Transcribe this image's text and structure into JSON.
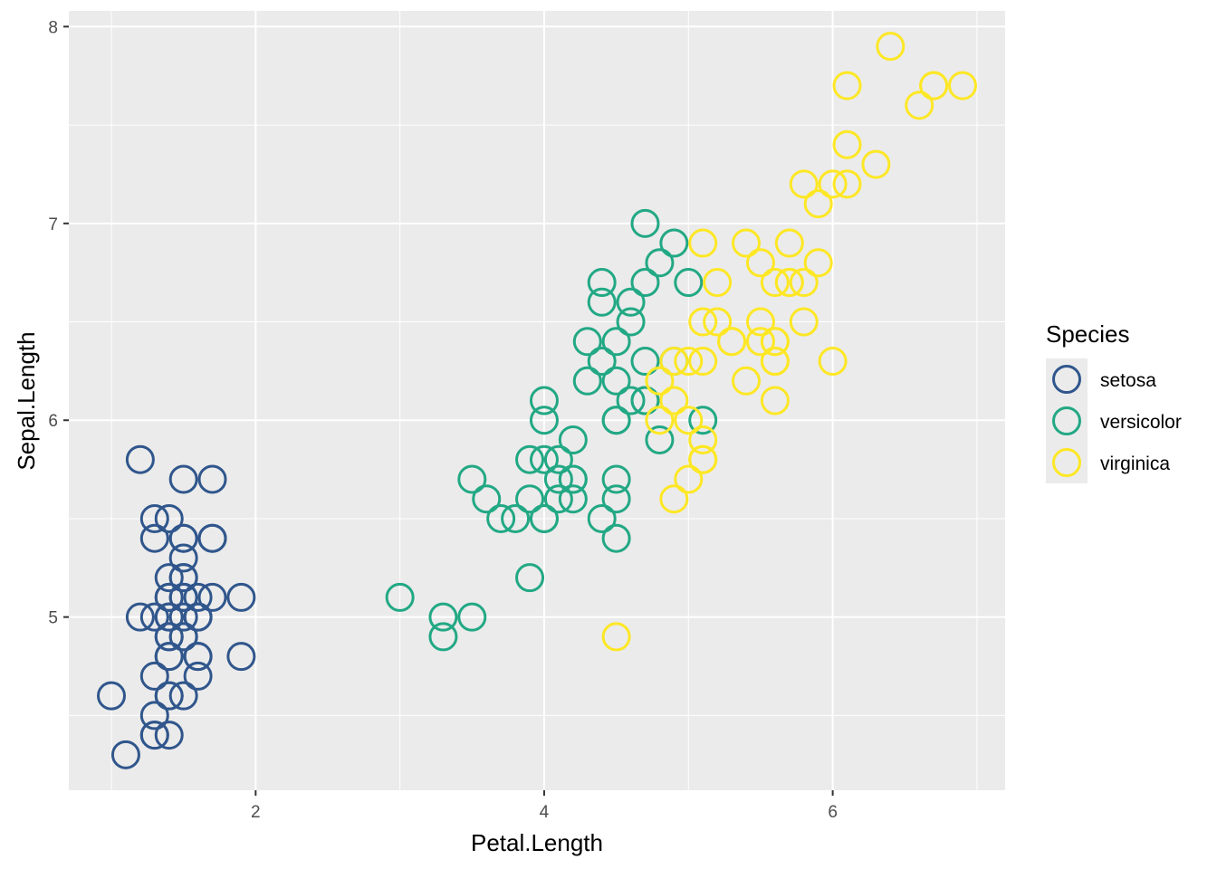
{
  "chart_data": {
    "type": "scatter",
    "title": "",
    "xlabel": "Petal.Length",
    "ylabel": "Sepal.Length",
    "xlim": [
      0.705,
      7.195
    ],
    "ylim": [
      4.12,
      8.08
    ],
    "x_ticks": [
      2,
      4,
      6
    ],
    "y_ticks": [
      5,
      6,
      7,
      8
    ],
    "x_tick_labels": [
      "2",
      "4",
      "6"
    ],
    "y_tick_labels": [
      "5",
      "6",
      "7",
      "8"
    ],
    "grid": true,
    "panel_background": "#EBEBEB",
    "grid_color": "#FFFFFF",
    "marker": "hollow-circle",
    "legend": {
      "title": "Species",
      "placement": "right"
    },
    "series": [
      {
        "name": "setosa",
        "color": "#30568C",
        "points": [
          [
            1.4,
            5.1
          ],
          [
            1.4,
            4.9
          ],
          [
            1.3,
            4.7
          ],
          [
            1.5,
            4.6
          ],
          [
            1.4,
            5.0
          ],
          [
            1.7,
            5.4
          ],
          [
            1.4,
            4.6
          ],
          [
            1.5,
            5.0
          ],
          [
            1.4,
            4.4
          ],
          [
            1.5,
            4.9
          ],
          [
            1.5,
            5.4
          ],
          [
            1.6,
            4.8
          ],
          [
            1.4,
            4.8
          ],
          [
            1.1,
            4.3
          ],
          [
            1.2,
            5.8
          ],
          [
            1.5,
            5.7
          ],
          [
            1.3,
            5.4
          ],
          [
            1.4,
            5.1
          ],
          [
            1.7,
            5.7
          ],
          [
            1.5,
            5.1
          ],
          [
            1.7,
            5.4
          ],
          [
            1.5,
            5.1
          ],
          [
            1.0,
            4.6
          ],
          [
            1.7,
            5.1
          ],
          [
            1.9,
            4.8
          ],
          [
            1.6,
            5.0
          ],
          [
            1.6,
            5.0
          ],
          [
            1.5,
            5.2
          ],
          [
            1.4,
            5.2
          ],
          [
            1.6,
            4.7
          ],
          [
            1.6,
            4.8
          ],
          [
            1.5,
            5.4
          ],
          [
            1.5,
            5.2
          ],
          [
            1.4,
            5.5
          ],
          [
            1.5,
            4.9
          ],
          [
            1.2,
            5.0
          ],
          [
            1.3,
            5.5
          ],
          [
            1.4,
            4.9
          ],
          [
            1.3,
            4.4
          ],
          [
            1.5,
            5.1
          ],
          [
            1.3,
            5.0
          ],
          [
            1.3,
            4.5
          ],
          [
            1.3,
            4.4
          ],
          [
            1.6,
            5.0
          ],
          [
            1.9,
            5.1
          ],
          [
            1.4,
            4.8
          ],
          [
            1.6,
            5.1
          ],
          [
            1.4,
            4.6
          ],
          [
            1.5,
            5.3
          ],
          [
            1.4,
            5.0
          ]
        ]
      },
      {
        "name": "versicolor",
        "color": "#22A884",
        "points": [
          [
            4.7,
            7.0
          ],
          [
            4.5,
            6.4
          ],
          [
            4.9,
            6.9
          ],
          [
            4.0,
            5.5
          ],
          [
            4.6,
            6.5
          ],
          [
            4.5,
            5.7
          ],
          [
            4.7,
            6.3
          ],
          [
            3.3,
            4.9
          ],
          [
            4.6,
            6.6
          ],
          [
            3.9,
            5.2
          ],
          [
            3.5,
            5.0
          ],
          [
            4.2,
            5.9
          ],
          [
            4.0,
            6.0
          ],
          [
            4.7,
            6.1
          ],
          [
            3.6,
            5.6
          ],
          [
            4.4,
            6.7
          ],
          [
            4.5,
            5.6
          ],
          [
            4.1,
            5.8
          ],
          [
            4.5,
            6.2
          ],
          [
            3.9,
            5.6
          ],
          [
            4.8,
            5.9
          ],
          [
            4.0,
            6.1
          ],
          [
            4.9,
            6.3
          ],
          [
            4.7,
            6.1
          ],
          [
            4.3,
            6.4
          ],
          [
            4.4,
            6.6
          ],
          [
            4.8,
            6.8
          ],
          [
            5.0,
            6.7
          ],
          [
            4.5,
            6.0
          ],
          [
            3.5,
            5.7
          ],
          [
            3.8,
            5.5
          ],
          [
            3.7,
            5.5
          ],
          [
            3.9,
            5.8
          ],
          [
            5.1,
            6.0
          ],
          [
            4.5,
            5.4
          ],
          [
            4.5,
            6.0
          ],
          [
            4.7,
            6.7
          ],
          [
            4.4,
            6.3
          ],
          [
            4.1,
            5.6
          ],
          [
            4.0,
            5.5
          ],
          [
            4.4,
            5.5
          ],
          [
            4.6,
            6.1
          ],
          [
            4.0,
            5.8
          ],
          [
            3.3,
            5.0
          ],
          [
            4.2,
            5.6
          ],
          [
            4.2,
            5.7
          ],
          [
            4.2,
            5.7
          ],
          [
            4.3,
            6.2
          ],
          [
            3.0,
            5.1
          ],
          [
            4.1,
            5.7
          ]
        ]
      },
      {
        "name": "virginica",
        "color": "#FDE725",
        "points": [
          [
            6.0,
            6.3
          ],
          [
            5.1,
            5.8
          ],
          [
            5.9,
            7.1
          ],
          [
            5.6,
            6.3
          ],
          [
            5.8,
            6.5
          ],
          [
            6.6,
            7.6
          ],
          [
            4.5,
            4.9
          ],
          [
            6.3,
            7.3
          ],
          [
            5.8,
            6.7
          ],
          [
            6.1,
            7.2
          ],
          [
            5.1,
            6.5
          ],
          [
            5.3,
            6.4
          ],
          [
            5.5,
            6.8
          ],
          [
            5.0,
            5.7
          ],
          [
            5.1,
            5.8
          ],
          [
            5.3,
            6.4
          ],
          [
            5.5,
            6.5
          ],
          [
            6.7,
            7.7
          ],
          [
            6.9,
            7.7
          ],
          [
            5.0,
            6.0
          ],
          [
            5.7,
            6.9
          ],
          [
            4.9,
            5.6
          ],
          [
            6.7,
            7.7
          ],
          [
            4.9,
            6.3
          ],
          [
            5.7,
            6.7
          ],
          [
            6.0,
            7.2
          ],
          [
            4.8,
            6.2
          ],
          [
            4.9,
            6.1
          ],
          [
            5.6,
            6.4
          ],
          [
            5.8,
            7.2
          ],
          [
            6.1,
            7.4
          ],
          [
            6.4,
            7.9
          ],
          [
            5.6,
            6.4
          ],
          [
            5.1,
            6.3
          ],
          [
            5.6,
            6.1
          ],
          [
            6.1,
            7.7
          ],
          [
            5.6,
            6.3
          ],
          [
            5.5,
            6.4
          ],
          [
            4.8,
            6.0
          ],
          [
            5.4,
            6.9
          ],
          [
            5.6,
            6.7
          ],
          [
            5.1,
            6.9
          ],
          [
            5.1,
            5.8
          ],
          [
            5.9,
            6.8
          ],
          [
            5.7,
            6.7
          ],
          [
            5.2,
            6.7
          ],
          [
            5.0,
            6.3
          ],
          [
            5.2,
            6.5
          ],
          [
            5.4,
            6.2
          ],
          [
            5.1,
            5.9
          ]
        ]
      }
    ]
  }
}
